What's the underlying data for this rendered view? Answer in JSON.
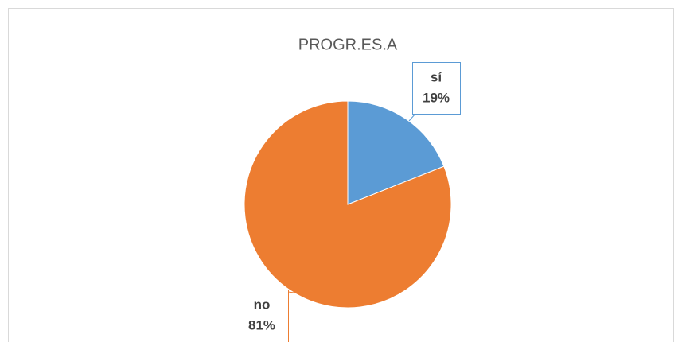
{
  "chart_data": {
    "type": "pie",
    "title": "PROGR.ES.A",
    "categories": [
      "sí",
      "no"
    ],
    "values": [
      19,
      81
    ],
    "value_labels": [
      "19%",
      "81%"
    ],
    "colors": [
      "#5b9bd5",
      "#ed7d31"
    ]
  }
}
